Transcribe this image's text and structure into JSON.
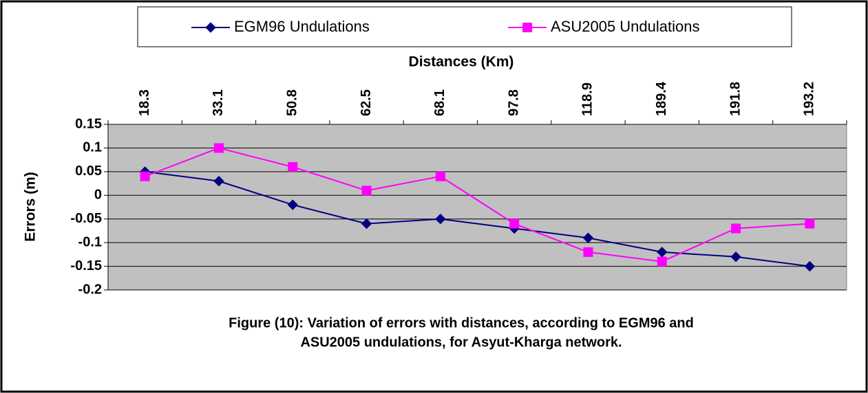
{
  "chart_data": {
    "type": "line",
    "x_label": "Distances (Km)",
    "y_label": "Errors (m)",
    "categories": [
      "18.3",
      "33.1",
      "50.8",
      "62.5",
      "68.1",
      "97.8",
      "118.9",
      "189.4",
      "191.8",
      "193.2"
    ],
    "series": [
      {
        "name": "EGM96 Undulations",
        "color": "#000080",
        "marker": "diamond",
        "values": [
          0.05,
          0.03,
          -0.02,
          -0.06,
          -0.05,
          -0.07,
          -0.09,
          -0.12,
          -0.13,
          -0.15
        ]
      },
      {
        "name": "ASU2005 Undulations",
        "color": "#ff00ff",
        "marker": "square",
        "values": [
          0.04,
          0.1,
          0.06,
          0.01,
          0.04,
          -0.06,
          -0.12,
          -0.14,
          -0.07,
          -0.06
        ]
      }
    ],
    "ylim": [
      -0.2,
      0.15
    ],
    "yticks": [
      0.15,
      0.1,
      0.05,
      0,
      -0.05,
      -0.1,
      -0.15,
      -0.2
    ],
    "grid": true,
    "plot_background": "#c0c0c0",
    "caption": [
      "Figure (10): Variation of errors with distances, according to EGM96 and",
      "ASU2005 undulations, for Asyut-Kharga network."
    ]
  }
}
